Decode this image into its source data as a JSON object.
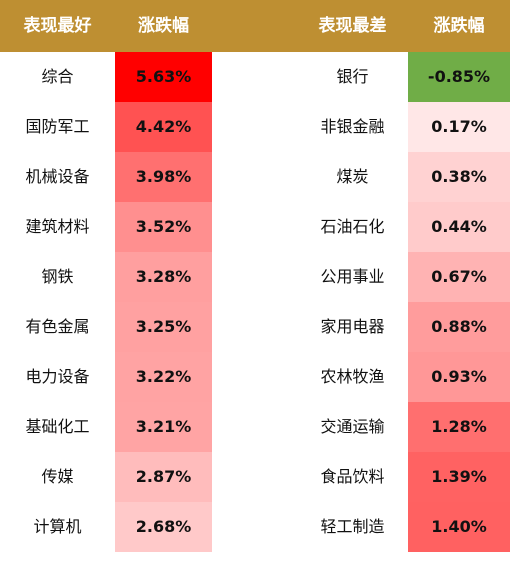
{
  "header": {
    "best_label": "表现最好",
    "change_label_left": "涨跌幅",
    "worst_label": "表现最差",
    "change_label_right": "涨跌幅",
    "background_color": "#BE8F32",
    "text_color": "#FFFFFF"
  },
  "best": [
    {
      "name": "综合",
      "change": "5.63%",
      "color": "#FF0000"
    },
    {
      "name": "国防军工",
      "change": "4.42%",
      "color": "#FF5252"
    },
    {
      "name": "机械设备",
      "change": "3.98%",
      "color": "#FF7070"
    },
    {
      "name": "建筑材料",
      "change": "3.52%",
      "color": "#FF8F8F"
    },
    {
      "name": "钢铁",
      "change": "3.28%",
      "color": "#FF9F9F"
    },
    {
      "name": "有色金属",
      "change": "3.25%",
      "color": "#FFA1A1"
    },
    {
      "name": "电力设备",
      "change": "3.22%",
      "color": "#FFA3A3"
    },
    {
      "name": "基础化工",
      "change": "3.21%",
      "color": "#FFA4A4"
    },
    {
      "name": "传媒",
      "change": "2.87%",
      "color": "#FFBCBC"
    },
    {
      "name": "计算机",
      "change": "2.68%",
      "color": "#FFC9C9"
    }
  ],
  "worst": [
    {
      "name": "银行",
      "change": "-0.85%",
      "color": "#70AD47"
    },
    {
      "name": "非银金融",
      "change": "0.17%",
      "color": "#FFE7E7"
    },
    {
      "name": "煤炭",
      "change": "0.38%",
      "color": "#FFD2D2"
    },
    {
      "name": "石油石化",
      "change": "0.44%",
      "color": "#FFCBCB"
    },
    {
      "name": "公用事业",
      "change": "0.67%",
      "color": "#FFB3B3"
    },
    {
      "name": "家用电器",
      "change": "0.88%",
      "color": "#FF9C9C"
    },
    {
      "name": "农林牧渔",
      "change": "0.93%",
      "color": "#FF9797"
    },
    {
      "name": "交通运输",
      "change": "1.28%",
      "color": "#FF6F6F"
    },
    {
      "name": "食品饮料",
      "change": "1.39%",
      "color": "#FF6262"
    },
    {
      "name": "轻工制造",
      "change": "1.40%",
      "color": "#FF6161"
    }
  ]
}
